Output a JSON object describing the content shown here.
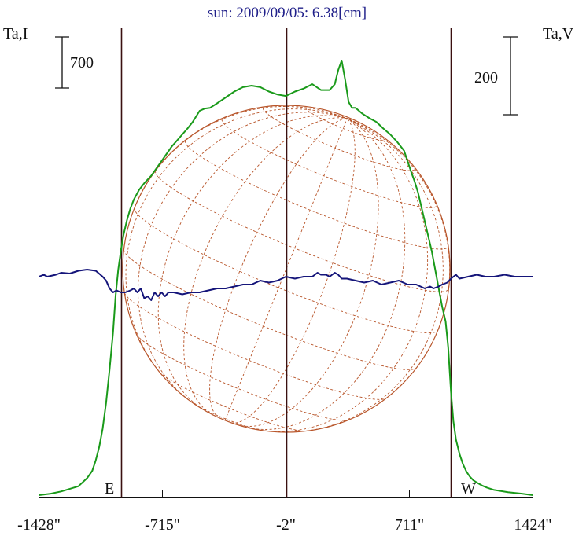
{
  "title": "sun: 2009/09/05: 6.38[cm]",
  "left_axis_label": "Ta,I",
  "right_axis_label": "Ta,V",
  "left_scale_value": "700",
  "right_scale_value": "200",
  "east_label": "E",
  "west_label": "W",
  "chart_data": {
    "type": "line",
    "title": "sun: 2009/09/05: 6.38[cm]",
    "xlabel": "",
    "ylabel_left": "Ta,I",
    "ylabel_right": "Ta,V",
    "xlim": [
      -1428,
      1424
    ],
    "x_ticks": [
      -1428,
      -715,
      -2,
      711,
      1424
    ],
    "x_tick_labels": [
      "-1428\"",
      "-715\"",
      "-2\"",
      "711\"",
      "1424\""
    ],
    "scale_bars": [
      {
        "axis": "left",
        "label": "700"
      },
      {
        "axis": "right",
        "label": "200"
      }
    ],
    "vertical_markers": [
      {
        "x": -955,
        "label": "E"
      },
      {
        "x": -2,
        "label": ""
      },
      {
        "x": 951,
        "label": "W"
      }
    ],
    "colors": {
      "intensity": "#1a9a1a",
      "polarization": "#15157a",
      "markers": "#3a1010",
      "disk": "#b8552a",
      "title": "#20208a"
    },
    "series": [
      {
        "key": "intensity",
        "x": [
          -1428,
          -1360,
          -1300,
          -1200,
          -1150,
          -1120,
          -1100,
          -1080,
          -1060,
          -1040,
          -1020,
          -1000,
          -985,
          -970,
          -955,
          -940,
          -920,
          -900,
          -880,
          -850,
          -820,
          -780,
          -750,
          -720,
          -690,
          -660,
          -630,
          -600,
          -570,
          -540,
          -500,
          -470,
          -440,
          -400,
          -350,
          -300,
          -250,
          -200,
          -150,
          -100,
          -50,
          -2,
          50,
          100,
          150,
          200,
          250,
          280,
          300,
          320,
          340,
          360,
          380,
          400,
          440,
          480,
          520,
          560,
          600,
          640,
          680,
          700,
          720,
          740,
          760,
          780,
          800,
          820,
          840,
          860,
          880,
          900,
          920,
          935,
          951,
          965,
          980,
          1000,
          1020,
          1040,
          1060,
          1080,
          1100,
          1130,
          1160,
          1200,
          1280,
          1360,
          1424
        ],
        "y": [
          0,
          20,
          50,
          120,
          230,
          330,
          470,
          650,
          900,
          1250,
          1700,
          2200,
          2700,
          3050,
          3310,
          3520,
          3720,
          3880,
          4000,
          4130,
          4220,
          4320,
          4420,
          4520,
          4620,
          4720,
          4800,
          4880,
          4960,
          5050,
          5200,
          5230,
          5240,
          5300,
          5380,
          5460,
          5520,
          5540,
          5520,
          5460,
          5420,
          5400,
          5460,
          5500,
          5560,
          5480,
          5480,
          5560,
          5750,
          5880,
          5620,
          5320,
          5240,
          5240,
          5160,
          5100,
          5050,
          4960,
          4880,
          4780,
          4660,
          4520,
          4380,
          4250,
          4100,
          3900,
          3700,
          3500,
          3300,
          3050,
          2800,
          2550,
          2350,
          2000,
          1400,
          1000,
          750,
          560,
          420,
          320,
          250,
          200,
          170,
          130,
          100,
          70,
          40,
          20,
          0
        ]
      },
      {
        "key": "polarization",
        "x": [
          -1428,
          -1400,
          -1380,
          -1330,
          -1300,
          -1250,
          -1200,
          -1150,
          -1100,
          -1060,
          -1040,
          -1020,
          -1000,
          -980,
          -955,
          -930,
          -900,
          -880,
          -860,
          -840,
          -820,
          -800,
          -780,
          -760,
          -740,
          -720,
          -700,
          -680,
          -650,
          -600,
          -550,
          -500,
          -450,
          -400,
          -350,
          -300,
          -250,
          -200,
          -150,
          -100,
          -50,
          -2,
          50,
          100,
          150,
          180,
          200,
          230,
          250,
          280,
          300,
          320,
          350,
          400,
          450,
          500,
          550,
          600,
          650,
          700,
          750,
          800,
          830,
          850,
          880,
          900,
          930,
          951,
          980,
          1000,
          1050,
          1100,
          1150,
          1200,
          1260,
          1320,
          1380,
          1424
        ],
        "y": [
          0,
          5,
          0,
          5,
          10,
          8,
          15,
          18,
          15,
          0,
          -10,
          -30,
          -40,
          -35,
          -40,
          -40,
          -35,
          -30,
          -40,
          -30,
          -55,
          -50,
          -60,
          -40,
          -50,
          -40,
          -50,
          -40,
          -40,
          -45,
          -40,
          -40,
          -35,
          -30,
          -30,
          -25,
          -20,
          -20,
          -10,
          -15,
          -10,
          0,
          -5,
          0,
          0,
          10,
          5,
          5,
          0,
          10,
          5,
          -5,
          -5,
          -10,
          -15,
          -10,
          -20,
          -15,
          -10,
          -20,
          -20,
          -30,
          -25,
          -30,
          -25,
          -20,
          -15,
          -5,
          5,
          -5,
          0,
          5,
          0,
          0,
          5,
          0,
          0,
          0
        ]
      }
    ]
  }
}
